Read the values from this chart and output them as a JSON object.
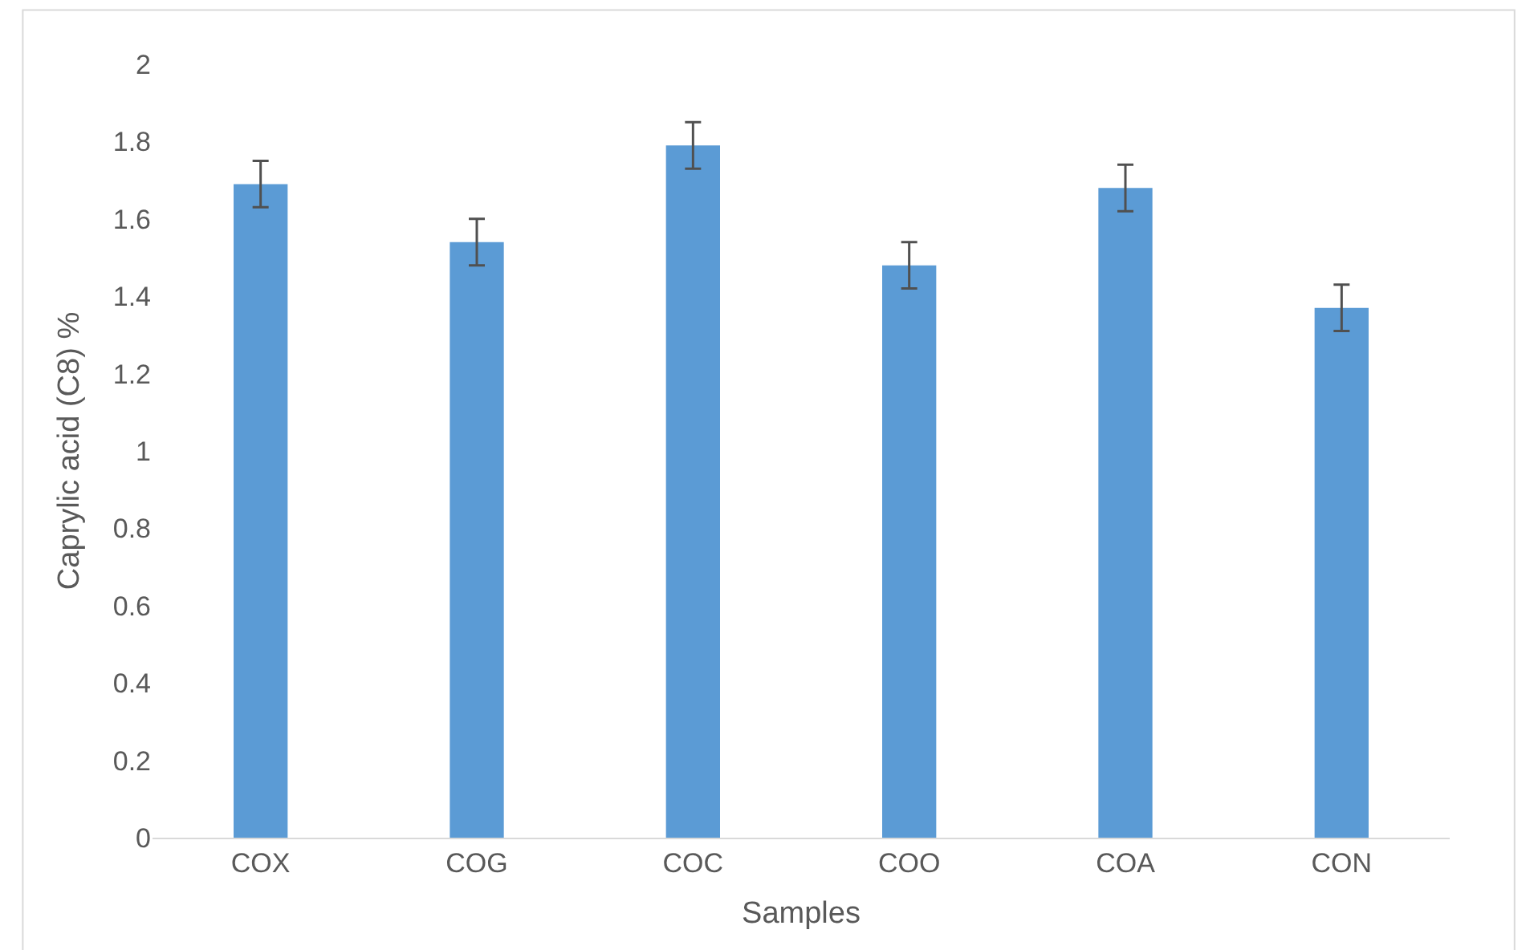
{
  "chart_data": {
    "type": "bar",
    "xlabel": "Samples",
    "ylabel": "Caprylic acid (C8) %",
    "categories": [
      "COX",
      "COG",
      "COC",
      "COO",
      "COA",
      "CON"
    ],
    "values": [
      1.69,
      1.54,
      1.79,
      1.48,
      1.68,
      1.37
    ],
    "errors": [
      0.06,
      0.06,
      0.06,
      0.06,
      0.06,
      0.06
    ],
    "color": "#5b9bd5",
    "ylim": [
      0,
      2
    ],
    "yticks": [
      0,
      0.2,
      0.4,
      0.6,
      0.8,
      1,
      1.2,
      1.4,
      1.6,
      1.8,
      2
    ],
    "grid": false
  }
}
